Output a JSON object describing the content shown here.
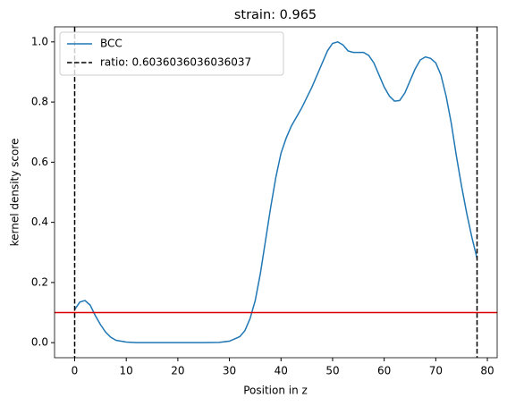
{
  "chart_data": {
    "type": "line",
    "title": "strain: 0.965",
    "xlabel": "Position in z",
    "ylabel": "kernel density score",
    "x": [
      0,
      1,
      2,
      3,
      4,
      5,
      6,
      7,
      8,
      10,
      12,
      15,
      20,
      25,
      28,
      30,
      32,
      33,
      34,
      35,
      36,
      37,
      38,
      39,
      40,
      41,
      42,
      44,
      46,
      48,
      49,
      50,
      51,
      52,
      53,
      54,
      55,
      56,
      57,
      58,
      59,
      60,
      61,
      62,
      63,
      64,
      65,
      66,
      67,
      68,
      69,
      70,
      71,
      72,
      73,
      74,
      75,
      76,
      77,
      78
    ],
    "series": [
      {
        "name": "BCC",
        "color": "#1f77b4",
        "values": [
          0.11,
          0.135,
          0.14,
          0.125,
          0.09,
          0.06,
          0.035,
          0.018,
          0.008,
          0.002,
          0,
          0,
          0,
          0,
          0.001,
          0.005,
          0.02,
          0.04,
          0.08,
          0.14,
          0.23,
          0.34,
          0.45,
          0.55,
          0.63,
          0.68,
          0.72,
          0.78,
          0.85,
          0.93,
          0.97,
          0.995,
          1.0,
          0.99,
          0.97,
          0.965,
          0.965,
          0.965,
          0.955,
          0.93,
          0.89,
          0.85,
          0.82,
          0.803,
          0.805,
          0.83,
          0.87,
          0.91,
          0.94,
          0.95,
          0.945,
          0.93,
          0.89,
          0.82,
          0.73,
          0.62,
          0.52,
          0.43,
          0.35,
          0.28
        ]
      }
    ],
    "vlines": {
      "name": "ratio: 0.6036036036036037",
      "color": "#000000",
      "values": [
        0,
        78
      ]
    },
    "hline": {
      "color": "#dd0000",
      "value": 0.1
    },
    "xlim": [
      -3.9,
      81.9
    ],
    "ylim": [
      -0.05,
      1.05
    ],
    "xticks": [
      0,
      10,
      20,
      30,
      40,
      50,
      60,
      70,
      80
    ],
    "yticks": [
      {
        "value": 0,
        "label": "0.0"
      },
      0.2,
      0.4,
      0.6,
      0.8,
      {
        "value": 1,
        "label": "1.0"
      }
    ],
    "legend": "upper left"
  }
}
